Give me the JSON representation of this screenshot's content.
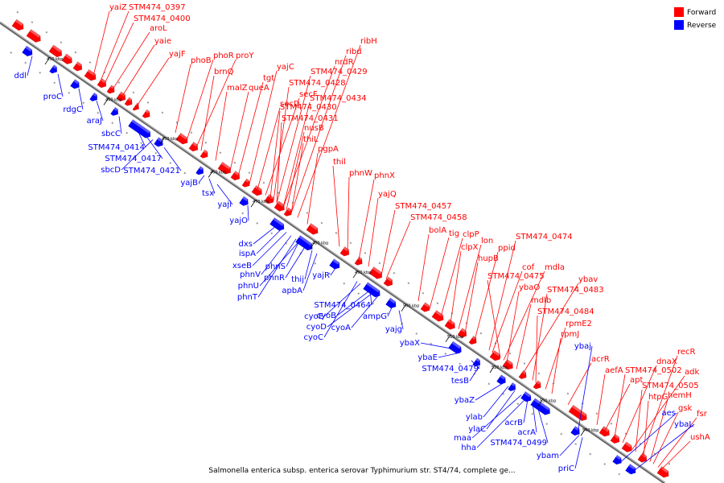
{
  "caption": "Salmonella enterica subsp. enterica serovar Typhimurium str. ST4/74, complete ge...",
  "legend": [
    {
      "label": "Forward",
      "color": "#ff0000"
    },
    {
      "label": "Reverse",
      "color": "#0000ff"
    }
  ],
  "colors": {
    "forward": "#ff0000",
    "reverse": "#0000ff",
    "backbone": "#888888"
  },
  "ticks": [
    "430 kbp",
    "440 kbp",
    "450 kbp",
    "460 kbp",
    "470 kbp",
    "480 kbp",
    "490 kbp",
    "500 kbp",
    "510 kbp",
    "520 kbp",
    "530 kbp",
    "540 kbp"
  ],
  "forward_genes": [
    "yaiZ",
    "STM474_0397",
    "STM474_0400",
    "aroL",
    "yaie",
    "yajF",
    "phoB",
    "phoR",
    "proY",
    "brnQ",
    "malZ",
    "queA",
    "tgt",
    "yajC",
    "secD",
    "secF",
    "STM474_0428",
    "STM474_0429",
    "nrdR",
    "ribd",
    "ribH",
    "STM474_0430",
    "STM474_0431",
    "STM474_0434",
    "nusB",
    "thiL",
    "pgpA",
    "thil",
    "phnW",
    "phnX",
    "yajQ",
    "STM474_0457",
    "STM474_0458",
    "bolA",
    "tig",
    "clpP",
    "clpX",
    "lon",
    "hupB",
    "ppid",
    "STM474_0474",
    "cof",
    "mdla",
    "STM474_0475",
    "ybaO",
    "ybav",
    "mdlb",
    "STM474_0483",
    "STM474_0484",
    "rpmE2",
    "rpmJ",
    "acrR",
    "aefA",
    "apt",
    "STM474_0502",
    "dnaX",
    "adk",
    "recR",
    "STM474_0505",
    "htpG",
    "hemH",
    "gsk",
    "fsr",
    "ushA"
  ],
  "reverse_genes": [
    "ddl",
    "proC",
    "rdgC",
    "araJ",
    "sbcC",
    "STM474_0414",
    "STM474_0417",
    "sbcD",
    "STM474_0421",
    "yajB",
    "tsx",
    "yaji",
    "yajO",
    "dxs",
    "ispA",
    "xseB",
    "phnV",
    "phnS",
    "phnR",
    "phnU",
    "phnT",
    "thij",
    "apbA",
    "yajR",
    "STM474_0464",
    "cyoE",
    "cyoB",
    "cyoD",
    "cyoA",
    "cyoC",
    "ampG",
    "yajg",
    "ybaX",
    "ybaE",
    "STM474_0479",
    "tesB",
    "ybaj",
    "ybaZ",
    "ylab",
    "ylaC",
    "acrB",
    "acrA",
    "maa",
    "hha",
    "STM474_0499",
    "ybam",
    "priC",
    "aes",
    "ybaL"
  ]
}
